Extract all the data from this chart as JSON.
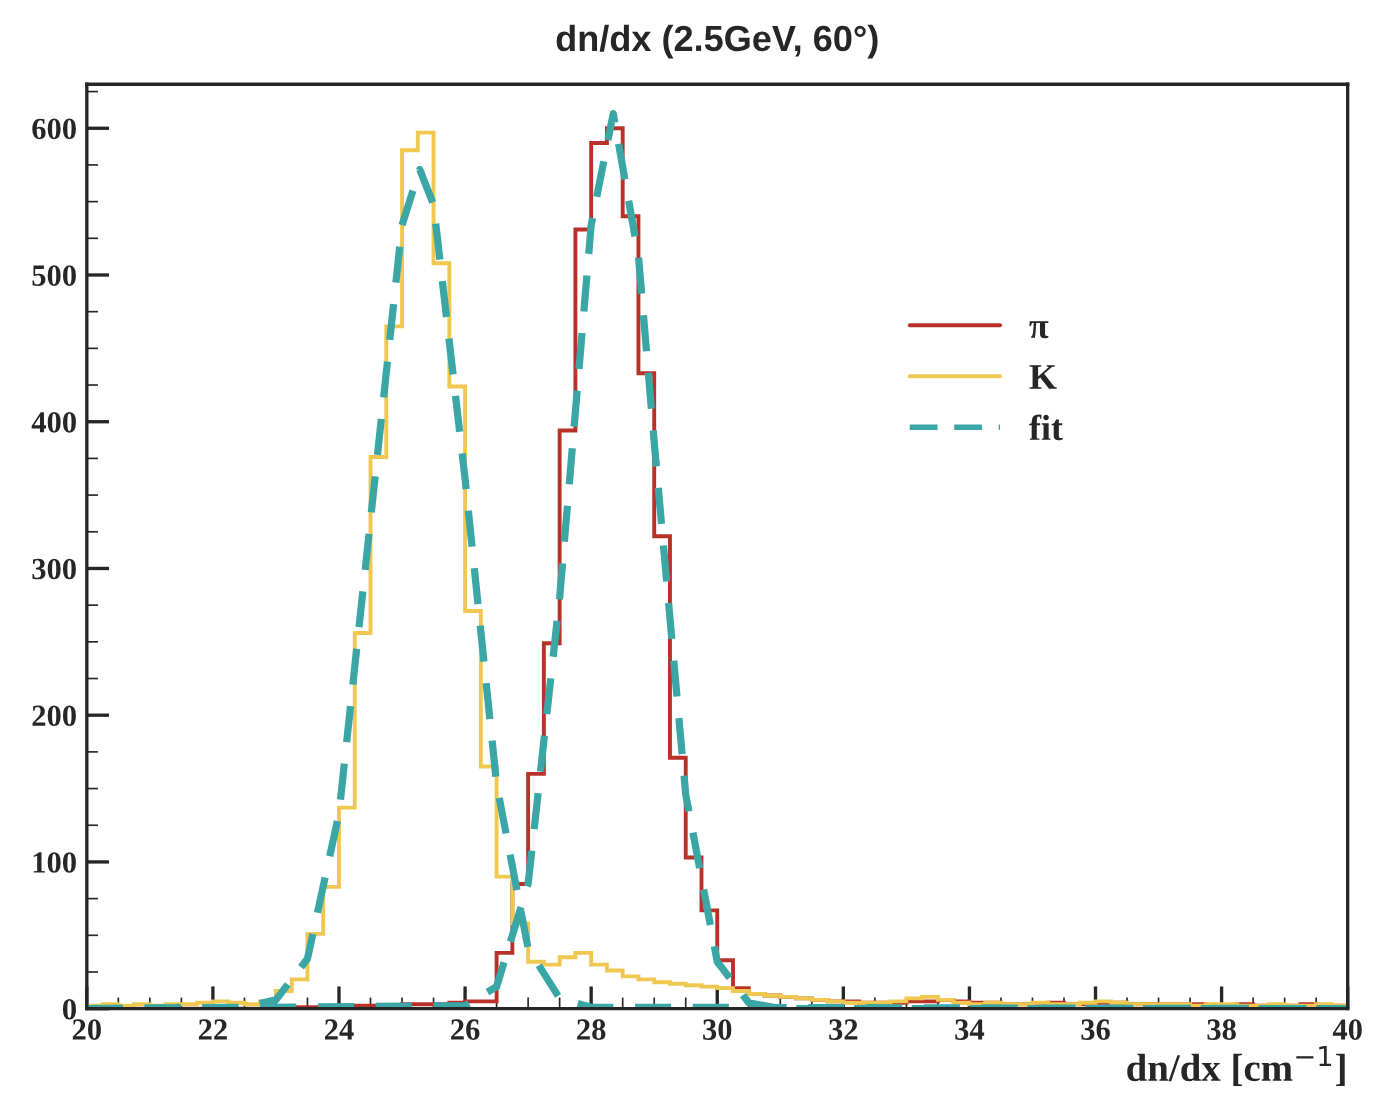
{
  "chart_data": {
    "type": "histogram",
    "title": "dn/dx (2.5GeV, 60°)",
    "xlabel": "dn/dx [cm$^{−1}$]",
    "bins": [
      20,
      20.25,
      20.5,
      20.75,
      21,
      21.25,
      21.5,
      21.75,
      22,
      22.25,
      22.5,
      22.75,
      23,
      23.25,
      23.5,
      23.75,
      24,
      24.25,
      24.5,
      24.75,
      25,
      25.25,
      25.5,
      25.75,
      26,
      26.25,
      26.5,
      26.75,
      27,
      27.25,
      27.5,
      27.75,
      28,
      28.25,
      28.5,
      28.75,
      29,
      29.25,
      29.5,
      29.75,
      30,
      30.25,
      30.5,
      30.75,
      31,
      31.25,
      31.5,
      31.75,
      32,
      32.25,
      32.5,
      32.75,
      33,
      33.25,
      33.5,
      33.75,
      34,
      34.25,
      34.5,
      34.75,
      35,
      35.25,
      35.5,
      35.75,
      36,
      36.25,
      36.5,
      36.75,
      37,
      37.25,
      37.5,
      37.75,
      38,
      38.25,
      38.5,
      38.75,
      39,
      39.25,
      39.5,
      39.75,
      40
    ],
    "series": [
      {
        "name": "π",
        "color": "#b8322a",
        "values": [
          0,
          0,
          0,
          0,
          0,
          0,
          0,
          0,
          0,
          0,
          0,
          0,
          1,
          1,
          1,
          1,
          2,
          2,
          2,
          2,
          3,
          3,
          3,
          4,
          5,
          5,
          38,
          85,
          160,
          249,
          394,
          531,
          590,
          600,
          540,
          433,
          322,
          171,
          103,
          67,
          33,
          14,
          10,
          9,
          8,
          7,
          6,
          5,
          5,
          4,
          4,
          4,
          5,
          5,
          6,
          5,
          4,
          4,
          3,
          3,
          3,
          4,
          3,
          3,
          4,
          4,
          3,
          3,
          3,
          3,
          3,
          2,
          2,
          3,
          2,
          2,
          2,
          3,
          2,
          2
        ]
      },
      {
        "name": "K",
        "color": "#f0c850",
        "values": [
          2,
          3,
          2,
          3,
          2,
          3,
          3,
          4,
          5,
          4,
          3,
          5,
          12,
          20,
          51,
          83,
          137,
          256,
          376,
          465,
          585,
          597,
          508,
          424,
          271,
          165,
          90,
          58,
          32,
          30,
          35,
          38,
          30,
          26,
          22,
          20,
          18,
          17,
          16,
          15,
          14,
          12,
          10,
          9,
          8,
          7,
          6,
          5,
          4,
          4,
          4,
          5,
          7,
          8,
          6,
          4,
          3,
          4,
          3,
          3,
          4,
          3,
          3,
          4,
          5,
          4,
          3,
          3,
          3,
          3,
          2,
          3,
          3,
          2,
          2,
          3,
          2,
          2,
          3,
          2
        ]
      },
      {
        "name": "fit",
        "type": "line",
        "color": "#3aa6a6",
        "line_style": "dashed",
        "x": [
          20,
          22.5,
          23,
          23.5,
          24,
          24.5,
          25,
          25.28,
          25.5,
          26,
          26.5,
          27,
          27.5,
          28,
          40
        ],
        "values": [
          0,
          1,
          6,
          34,
          133,
          333,
          534,
          572,
          548,
          361,
          153,
          41,
          7,
          1,
          0
        ]
      },
      {
        "type": "line",
        "color": "#3aa6a6",
        "line_style": "dashed",
        "x": [
          20,
          26,
          26.5,
          27,
          27.5,
          28,
          28.35,
          28.75,
          29,
          29.5,
          30,
          30.5,
          31,
          40
        ],
        "values": [
          0,
          2,
          15,
          85,
          280,
          534,
          610,
          513,
          386,
          146,
          32,
          4,
          0,
          0
        ]
      }
    ],
    "xlim": [
      20,
      40
    ],
    "ylim": [
      0,
      630
    ],
    "xticks": [
      20,
      22,
      24,
      26,
      28,
      30,
      32,
      34,
      36,
      38,
      40
    ],
    "yticks": [
      0,
      100,
      200,
      300,
      400,
      500,
      600
    ],
    "legend": "right",
    "grid": false,
    "marker": "none"
  }
}
